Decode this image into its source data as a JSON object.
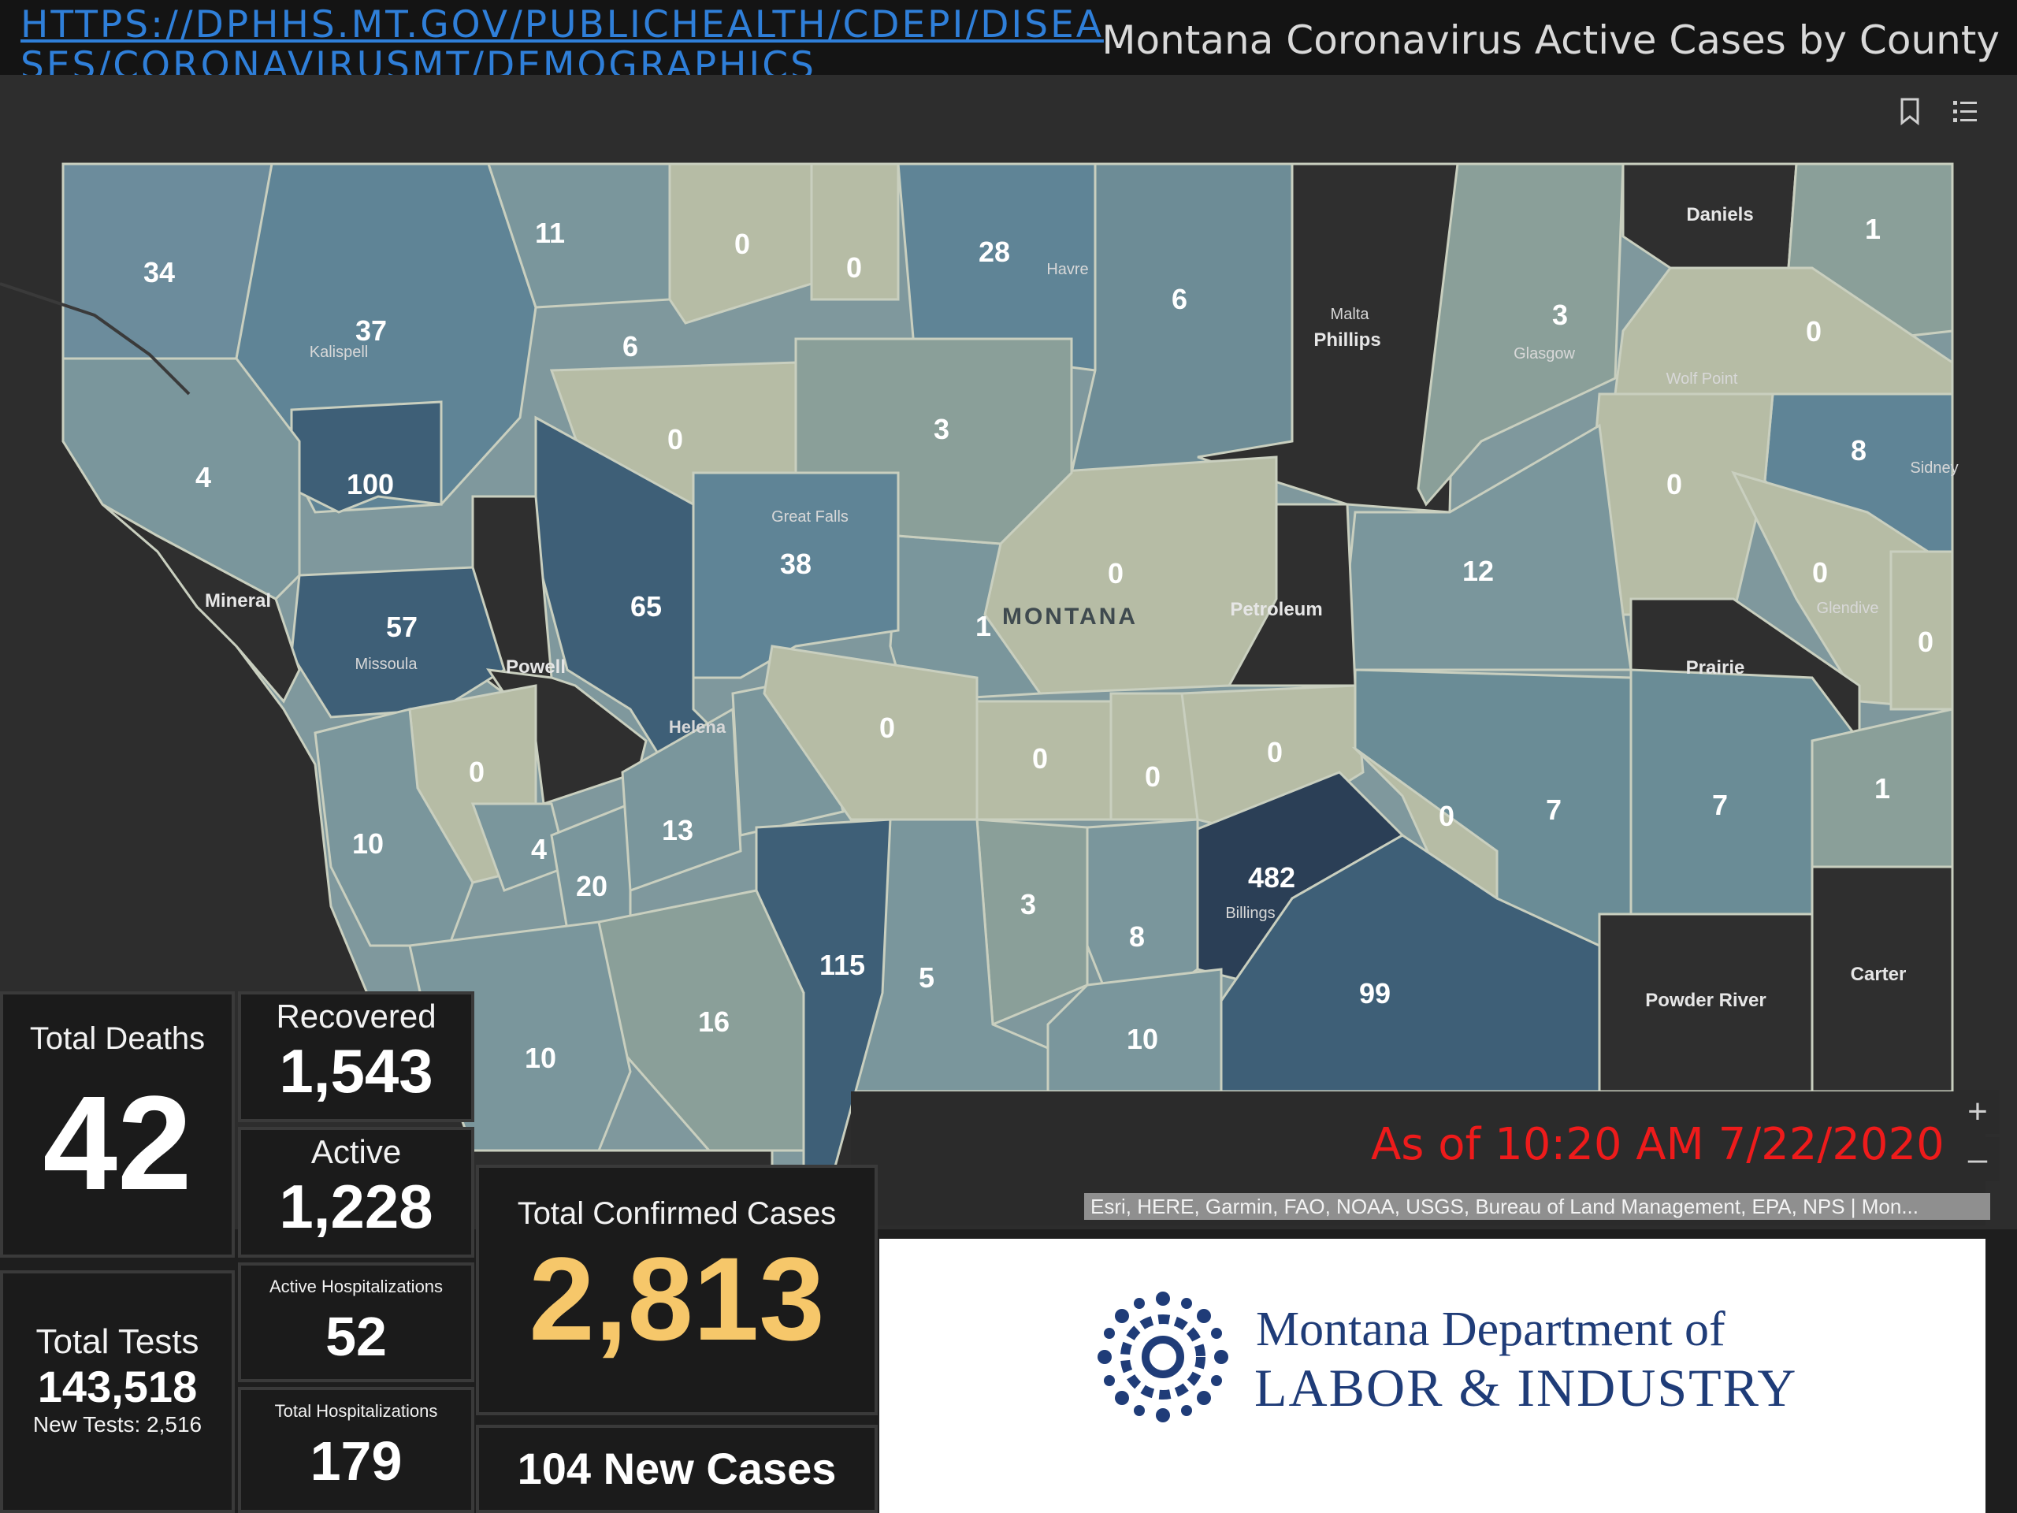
{
  "header": {
    "source_link": "HTTPS://DPHHS.MT.GOV/PUBLICHEALTH/CDEPI/DISEASES/CORONAVIRUSMT/DEMOGRAPHICS",
    "title": "Montana Coronavirus Active Cases by County"
  },
  "toolbar": {
    "icons": [
      "bookmark-icon",
      "legend-list-icon"
    ]
  },
  "map": {
    "state_label": "MONTANA",
    "zoom_in": "+",
    "zoom_out": "–",
    "as_of": "As of 10:20 AM 7/22/2020",
    "attribution": "Esri, HERE, Garmin, FAO, NOAA, USGS, Bureau of Land Management, EPA, NPS | Mon...",
    "colors": {
      "zero": "#b6bca5",
      "low": "#8a9f99",
      "medium": "#5f8496",
      "high": "#3e5f77",
      "highest": "#2b3f56",
      "no_data": "#2f2f2f"
    },
    "counts": [
      "34",
      "11",
      "0",
      "0",
      "28",
      "6",
      "1",
      "37",
      "6",
      "0",
      "3",
      "4",
      "100",
      "0",
      "3",
      "38",
      "0",
      "8",
      "12",
      "0",
      "65",
      "57",
      "1",
      "0",
      "0",
      "0",
      "10",
      "0",
      "0",
      "0",
      "0",
      "1",
      "0",
      "4",
      "13",
      "482",
      "20",
      "7",
      "7",
      "3",
      "8",
      "115",
      "5",
      "10",
      "16",
      "99",
      "10"
    ],
    "city_labels": [
      "Kalispell",
      "Havre",
      "Malta",
      "Glasgow",
      "Wolf Point",
      "Sidney",
      "Great Falls",
      "Missoula",
      "Helena",
      "Glendive",
      "Billings"
    ],
    "county_labels": [
      "Daniels",
      "Phillips",
      "Mineral",
      "Petroleum",
      "Powell",
      "Prairie",
      "Powder River",
      "Carter"
    ]
  },
  "stats": {
    "total_deaths": {
      "label": "Total Deaths",
      "value": "42"
    },
    "recovered": {
      "label": "Recovered",
      "value": "1,543"
    },
    "active": {
      "label": "Active",
      "value": "1,228"
    },
    "active_hosp": {
      "label": "Active Hospitalizations",
      "value": "52"
    },
    "total_hosp": {
      "label": "Total Hospitalizations",
      "value": "179"
    },
    "total_tests": {
      "label": "Total Tests",
      "value": "143,518",
      "new_tests": "New Tests: 2,516"
    },
    "confirmed": {
      "label": "Total Confirmed Cases",
      "value": "2,813",
      "accent": "#f6c76a"
    },
    "new_cases": {
      "value": "104 New Cases"
    }
  },
  "logo": {
    "line1": "Montana Department of",
    "line2": "LABOR & INDUSTRY",
    "color": "#1f3c78"
  }
}
